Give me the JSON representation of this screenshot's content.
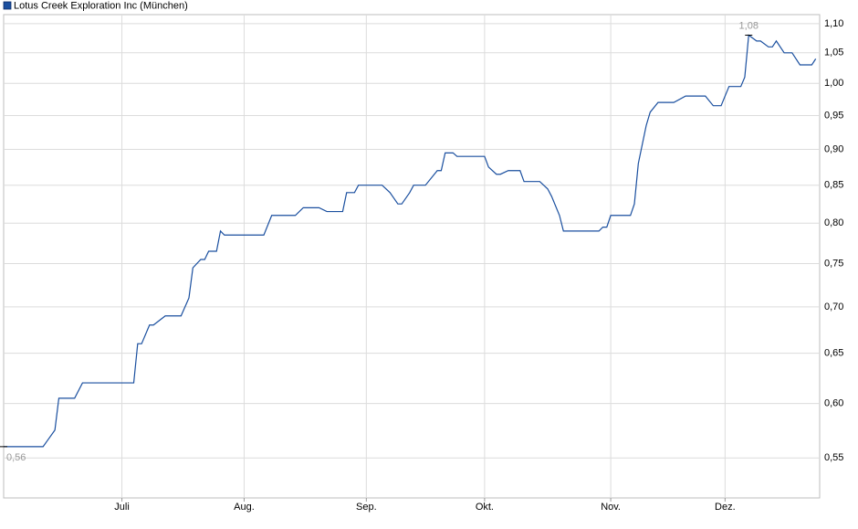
{
  "chart_data": {
    "type": "line",
    "series": [
      {
        "name": "Lotus Creek Exploration Inc (München)",
        "color": "#1a4f9f",
        "x": [
          0,
          10,
          11,
          13,
          14,
          18,
          20,
          33,
          34,
          35,
          37,
          38,
          41,
          45,
          47,
          48,
          50,
          51,
          52,
          54,
          55,
          56,
          66,
          68,
          74,
          76,
          80,
          82,
          86,
          87,
          89,
          90,
          96,
          98,
          100,
          101,
          103,
          104,
          107,
          110,
          111,
          112,
          114,
          115,
          122,
          123,
          125,
          126,
          128,
          131,
          132,
          136,
          138,
          139,
          141,
          142,
          151,
          152,
          153,
          154,
          159,
          160,
          161,
          163,
          164,
          166,
          170,
          173,
          178,
          180,
          182,
          184,
          187,
          188,
          189,
          191,
          192,
          194,
          195,
          196,
          198,
          200,
          202,
          205,
          206
        ],
        "values": [
          0.56,
          0.56,
          0.565,
          0.575,
          0.605,
          0.605,
          0.62,
          0.62,
          0.66,
          0.66,
          0.68,
          0.68,
          0.69,
          0.69,
          0.71,
          0.745,
          0.755,
          0.755,
          0.765,
          0.765,
          0.79,
          0.785,
          0.785,
          0.81,
          0.81,
          0.82,
          0.82,
          0.815,
          0.815,
          0.84,
          0.84,
          0.85,
          0.85,
          0.84,
          0.825,
          0.825,
          0.84,
          0.85,
          0.85,
          0.87,
          0.87,
          0.895,
          0.895,
          0.89,
          0.89,
          0.875,
          0.865,
          0.865,
          0.87,
          0.87,
          0.855,
          0.855,
          0.845,
          0.835,
          0.81,
          0.79,
          0.79,
          0.795,
          0.795,
          0.81,
          0.81,
          0.825,
          0.88,
          0.935,
          0.955,
          0.97,
          0.97,
          0.98,
          0.98,
          0.965,
          0.965,
          0.995,
          0.995,
          1.01,
          1.08,
          1.07,
          1.07,
          1.06,
          1.06,
          1.07,
          1.05,
          1.05,
          1.03,
          1.03,
          1.04
        ]
      }
    ],
    "annotations": [
      {
        "x": 0,
        "y": 0.56,
        "label": "0,56"
      },
      {
        "x": 189,
        "y": 1.08,
        "label": "1,08"
      }
    ],
    "xlim": [
      0,
      207
    ],
    "xticks": [
      {
        "value": 30,
        "label": "Juli"
      },
      {
        "value": 61,
        "label": "Aug."
      },
      {
        "value": 92,
        "label": "Sep."
      },
      {
        "value": 122,
        "label": "Okt."
      },
      {
        "value": 154,
        "label": "Nov."
      },
      {
        "value": 183,
        "label": "Dez."
      }
    ],
    "ylim": [
      0.516,
      1.116
    ],
    "yticks": [
      {
        "value": 0.55,
        "label": "0,55"
      },
      {
        "value": 0.6,
        "label": "0,60"
      },
      {
        "value": 0.65,
        "label": "0,65"
      },
      {
        "value": 0.7,
        "label": "0,70"
      },
      {
        "value": 0.75,
        "label": "0,75"
      },
      {
        "value": 0.8,
        "label": "0,80"
      },
      {
        "value": 0.85,
        "label": "0,85"
      },
      {
        "value": 0.9,
        "label": "0,90"
      },
      {
        "value": 0.95,
        "label": "0,95"
      },
      {
        "value": 1.0,
        "label": "1,00"
      },
      {
        "value": 1.05,
        "label": "1,05"
      },
      {
        "value": 1.1,
        "label": "1,10"
      }
    ],
    "log_y": true,
    "grid": true
  }
}
